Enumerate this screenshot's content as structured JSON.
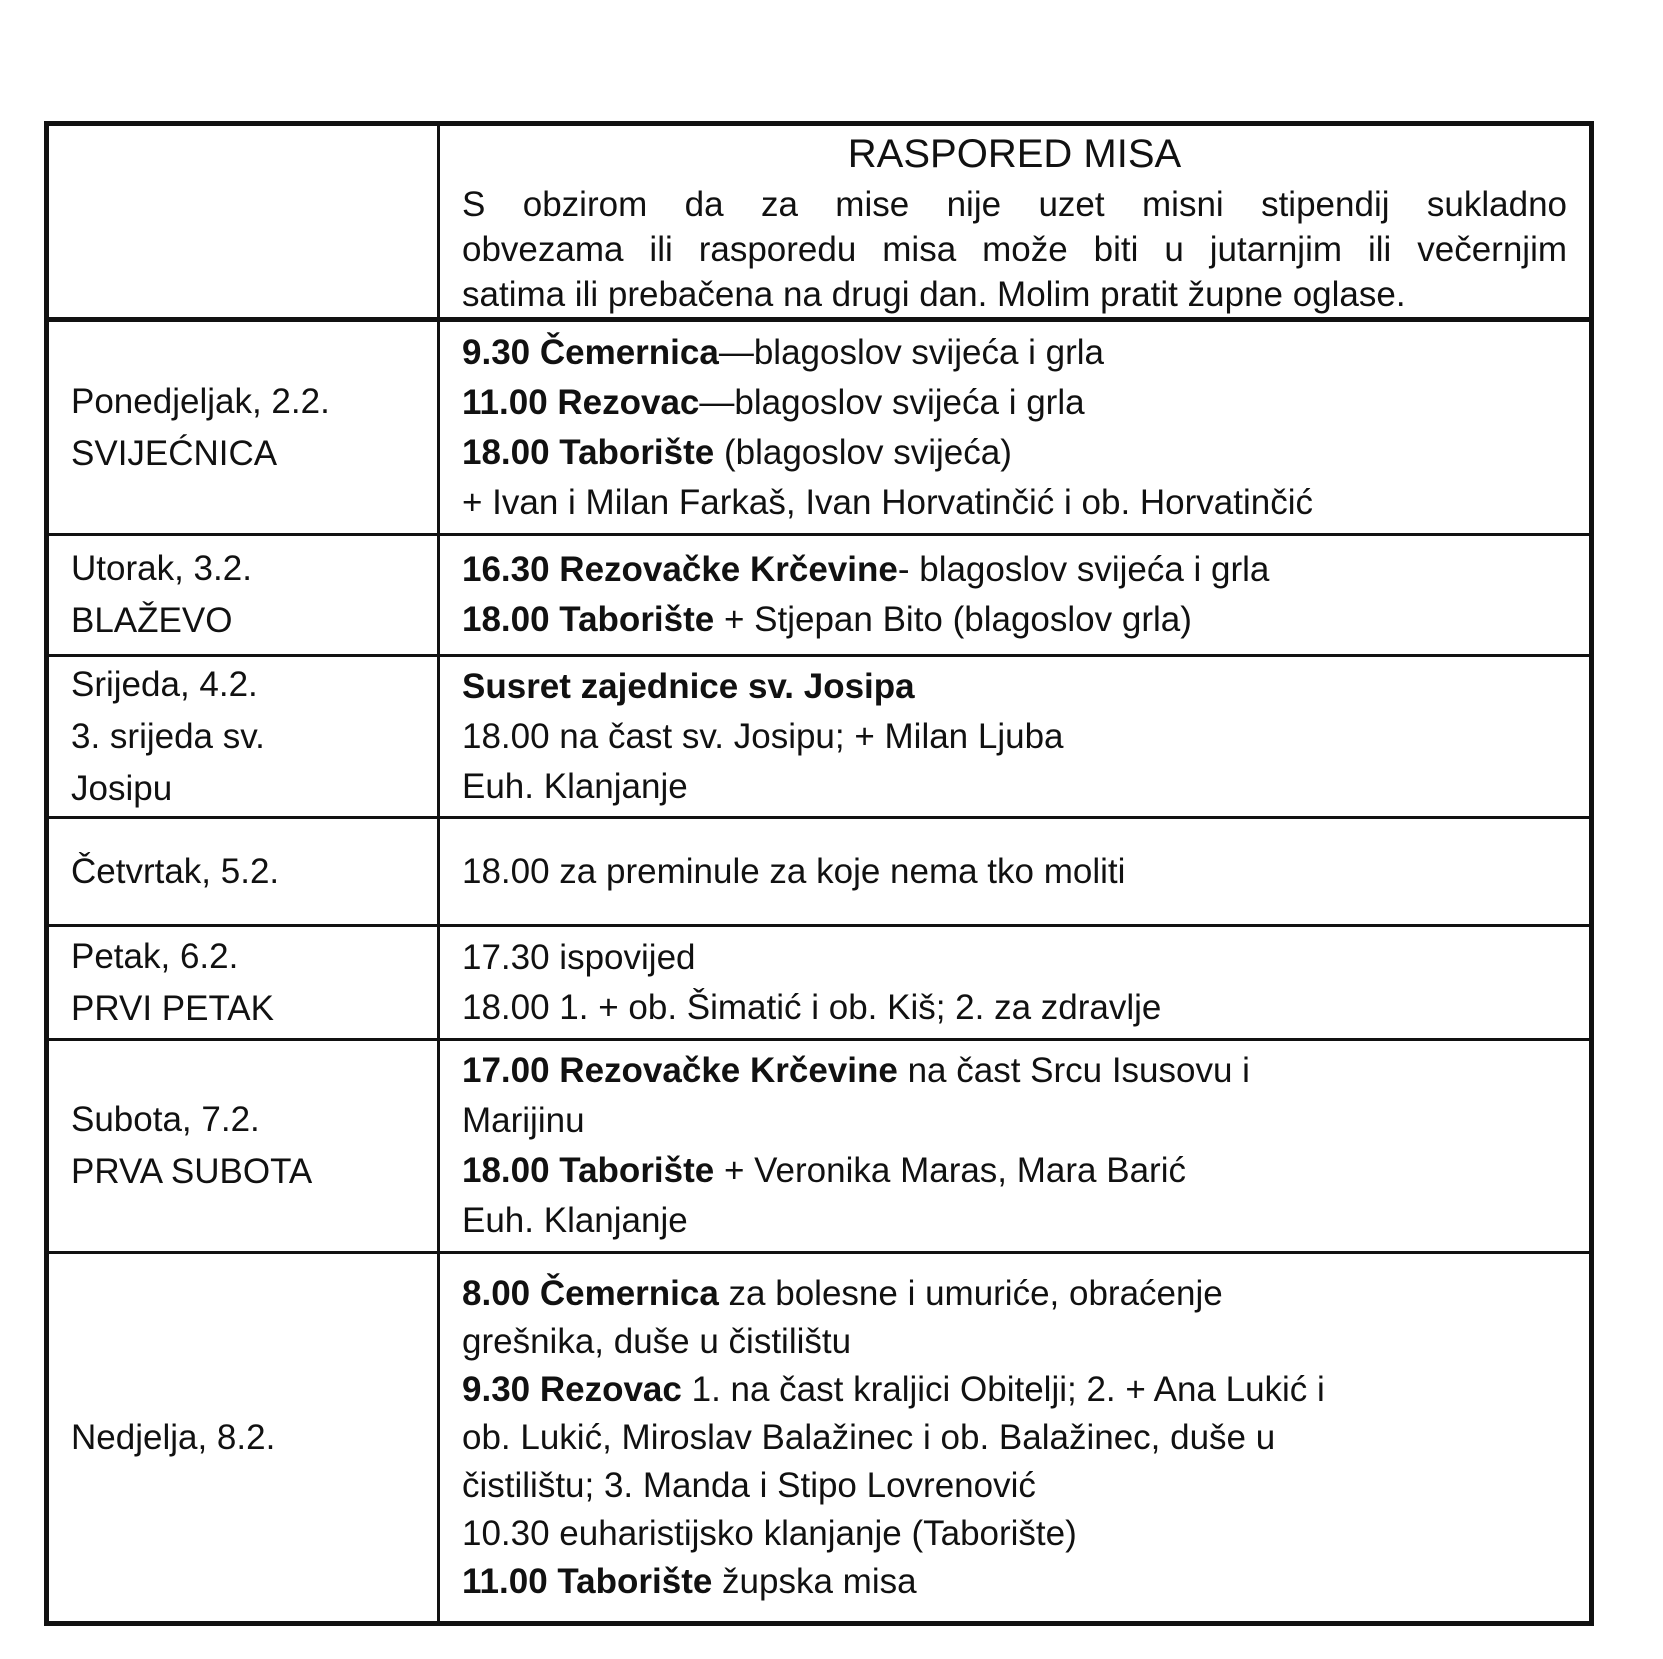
{
  "title": "RASPORED MISA",
  "intro_lines": [
    "S obzirom da za mise nije uzet misni stipendij sukladno",
    "obvezama ili rasporedu misa može biti u jutarnjim ili večernjim",
    "satima ili prebačena na drugi dan. Molim pratit župne oglase."
  ],
  "rows": [
    {
      "day": [
        "Ponedjeljak, 2.2.",
        "SVIJEĆNICA"
      ],
      "lines": [
        {
          "bold": "9.30 Čemernica",
          "text": "—blagoslov svijeća i grla"
        },
        {
          "bold": "11.00 Rezovac",
          "text": "—blagoslov svijeća i grla"
        },
        {
          "bold": "18.00 Taborište",
          "text": " (blagoslov svijeća)"
        },
        {
          "bold": "",
          "text": "+ Ivan i Milan Farkaš, Ivan Horvatinčić i ob. Horvatinčić"
        }
      ]
    },
    {
      "day": [
        "Utorak, 3.2.",
        "BLAŽEVO"
      ],
      "lines": [
        {
          "bold": "16.30 Rezovačke Krčevine",
          "text": "- blagoslov svijeća i grla"
        },
        {
          "bold": "18.00 Taborište",
          "text": " + Stjepan Bito (blagoslov grla)"
        }
      ]
    },
    {
      "day": [
        "Srijeda, 4.2.",
        "3. srijeda sv.",
        "Josipu"
      ],
      "lines": [
        {
          "bold": "Susret zajednice sv. Josipa",
          "text": ""
        },
        {
          "bold": "",
          "text": "18.00 na čast sv. Josipu; + Milan Ljuba"
        },
        {
          "bold": "",
          "text": "Euh. Klanjanje"
        }
      ]
    },
    {
      "day": [
        "Četvrtak, 5.2."
      ],
      "lines": [
        {
          "bold": "",
          "text": "18.00 za preminule za koje nema tko moliti"
        }
      ]
    },
    {
      "day": [
        "Petak, 6.2.",
        "PRVI PETAK"
      ],
      "lines": [
        {
          "bold": "",
          "text": "17.30 ispovijed"
        },
        {
          "bold": "",
          "text": "18.00 1. + ob. Šimatić i ob. Kiš; 2. za zdravlje"
        }
      ]
    },
    {
      "day": [
        "Subota, 7.2.",
        "PRVA SUBOTA"
      ],
      "lines": [
        {
          "bold": "17.00 Rezovačke Krčevine",
          "text": " na čast Srcu Isusovu i"
        },
        {
          "bold": "",
          "text": "Marijinu"
        },
        {
          "bold": "18.00 Taborište",
          "text": " + Veronika Maras, Mara Barić"
        },
        {
          "bold": "",
          "text": "Euh. Klanjanje"
        }
      ]
    },
    {
      "day": [
        "Nedjelja, 8.2."
      ],
      "lines": [
        {
          "bold": "8.00 Čemernica",
          "text": " za bolesne i umuriće, obraćenje"
        },
        {
          "bold": "",
          "text": "grešnika, duše u čistilištu"
        },
        {
          "bold": "9.30 Rezovac",
          "text": " 1. na čast kraljici Obitelji; 2. + Ana Lukić i"
        },
        {
          "bold": "",
          "text": "ob. Lukić, Miroslav Balažinec i ob. Balažinec, duše u"
        },
        {
          "bold": "",
          "text": "čistilištu; 3. Manda i Stipo Lovrenović"
        },
        {
          "bold": "",
          "text": "10.30 euharistijsko klanjanje (Taborište)"
        },
        {
          "bold": "11.00 Taborište",
          "text": " župska misa"
        }
      ]
    }
  ]
}
